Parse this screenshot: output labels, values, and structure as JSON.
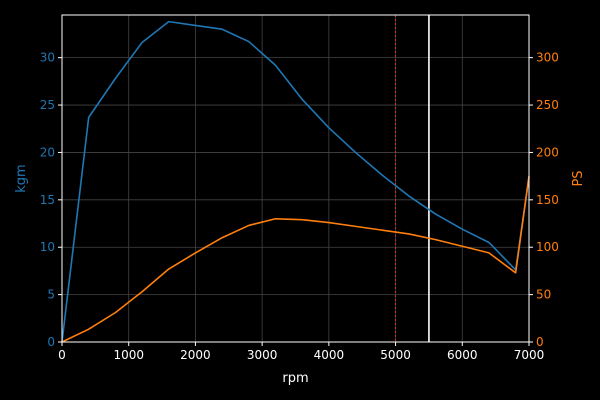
{
  "chart_data": {
    "type": "line",
    "title": "",
    "xlabel": "rpm",
    "ylabel_left": "kgm",
    "ylabel_right": "PS",
    "xlim": [
      0,
      7000
    ],
    "ylim_left": [
      0,
      34.5
    ],
    "ylim_right": [
      0,
      345
    ],
    "x_ticks": [
      0,
      1000,
      2000,
      3000,
      4000,
      5000,
      6000,
      7000
    ],
    "y_left_ticks": [
      0,
      5,
      10,
      15,
      20,
      25,
      30
    ],
    "y_right_ticks": [
      0,
      50,
      100,
      150,
      200,
      250,
      300
    ],
    "grid": true,
    "series": [
      {
        "axis": "left",
        "color": "#1f77b4",
        "x": [
          0,
          400,
          800,
          1200,
          1600,
          2000,
          2400,
          2800,
          3200,
          3600,
          4000,
          4400,
          4800,
          5200,
          5600,
          6000,
          6400,
          6800,
          7000
        ],
        "y": [
          0,
          23.7,
          27.8,
          31.6,
          33.8,
          33.4,
          33.0,
          31.7,
          29.2,
          25.6,
          22.6,
          20.0,
          17.6,
          15.4,
          13.5,
          11.9,
          10.5,
          7.6,
          17.4
        ]
      },
      {
        "axis": "right",
        "color": "#ff7f0e",
        "x": [
          0,
          400,
          800,
          1200,
          1600,
          2000,
          2400,
          2800,
          3200,
          3600,
          4000,
          4400,
          4800,
          5200,
          5600,
          6000,
          6400,
          6800,
          7000
        ],
        "y": [
          0,
          13.5,
          31,
          53,
          77,
          94,
          110,
          123,
          130,
          129,
          126,
          122,
          118,
          114,
          108,
          101,
          94,
          73,
          175
        ]
      }
    ],
    "reference_lines": [
      {
        "x": 5000,
        "color": "#d62728",
        "style": "dotted"
      },
      {
        "x": 5500,
        "color": "#ffffff",
        "style": "solid"
      }
    ],
    "colors": {
      "background": "#000000",
      "axes": "#ffffff",
      "grid": "#444444",
      "left_axis_text": "#1f77b4",
      "right_axis_text": "#ff7f0e"
    }
  }
}
